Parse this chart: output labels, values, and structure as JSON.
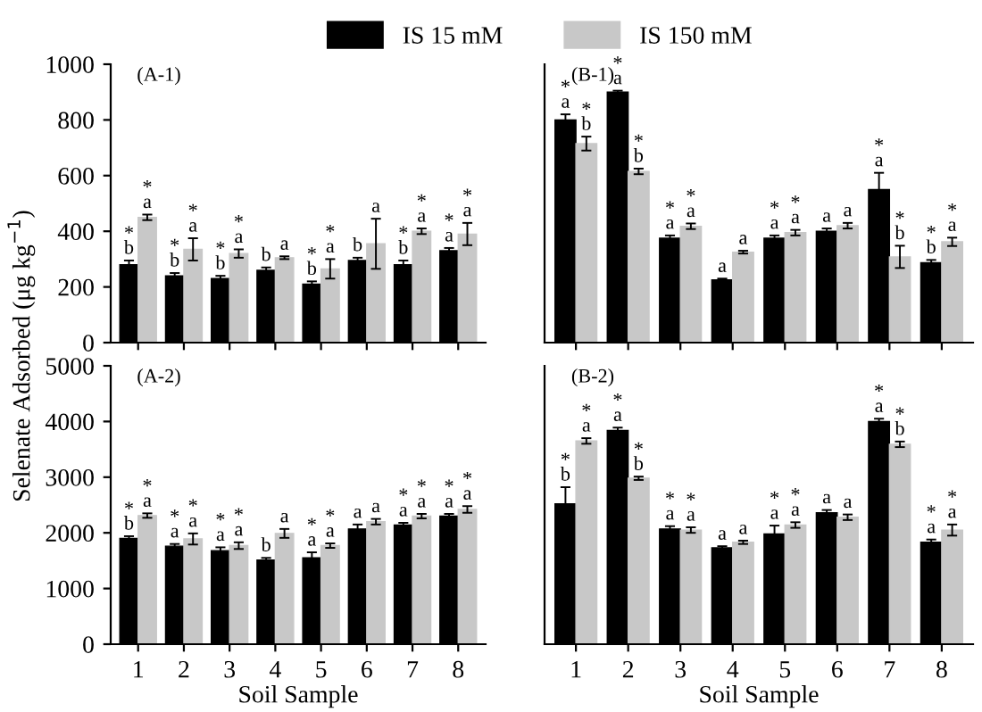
{
  "chart_data": [
    {
      "type": "bar",
      "title": "(A-1)",
      "ylabel": "Selenate Adsorbed (μg kg$^{−1}$)",
      "categories": [
        "1",
        "2",
        "3",
        "4",
        "5",
        "6",
        "7",
        "8"
      ],
      "ylim": [
        0,
        1000
      ],
      "yticks": [
        0,
        200,
        400,
        600,
        800,
        1000
      ],
      "tick_labels": "y",
      "legend": "top",
      "grid": false,
      "series": [
        {
          "name": "IS 15 mM",
          "color": "#000000",
          "values": [
            280,
            240,
            230,
            260,
            210,
            295,
            280,
            330
          ],
          "errors": [
            15,
            10,
            10,
            10,
            10,
            10,
            15,
            10
          ],
          "value_labels": [
            "*\nb",
            "*\nb",
            "*\nb",
            "b",
            "*\nb",
            "b",
            "*\nb",
            "*\na"
          ]
        },
        {
          "name": "IS 150 mM",
          "color": "#c8c8c8",
          "values": [
            450,
            335,
            320,
            305,
            265,
            355,
            400,
            390
          ],
          "errors": [
            10,
            40,
            15,
            5,
            35,
            90,
            10,
            40
          ],
          "value_labels": [
            "*\na",
            "*\na",
            "*\na",
            "a",
            "*\na",
            "a",
            "*\na",
            "*\na"
          ]
        }
      ]
    },
    {
      "type": "bar",
      "title": "(B-1)",
      "categories": [
        "1",
        "2",
        "3",
        "4",
        "5",
        "6",
        "7",
        "8"
      ],
      "ylim": [
        0,
        1000
      ],
      "yticks": [
        0,
        200,
        400,
        600,
        800,
        1000
      ],
      "tick_labels": false,
      "grid": false,
      "series": [
        {
          "color": "#000000",
          "values": [
            800,
            900,
            375,
            225,
            375,
            400,
            550,
            287
          ],
          "errors": [
            20,
            5,
            10,
            5,
            10,
            10,
            60,
            10
          ],
          "value_labels": [
            "*\na",
            "*\na",
            "*\na",
            "a",
            "*\na",
            "a",
            "*\na",
            "*\nb"
          ]
        },
        {
          "color": "#c8c8c8",
          "values": [
            715,
            615,
            418,
            325,
            395,
            420,
            308,
            362
          ],
          "errors": [
            25,
            10,
            10,
            5,
            10,
            10,
            40,
            15
          ],
          "value_labels": [
            "*\nb",
            "*\nb",
            "*\na",
            "a",
            "*\na",
            "a",
            "*\nb",
            "*\na"
          ]
        }
      ]
    },
    {
      "type": "bar",
      "title": "(A-2)",
      "xlabel": "Soil Sample",
      "categories": [
        "1",
        "2",
        "3",
        "4",
        "5",
        "6",
        "7",
        "8"
      ],
      "ylim": [
        0,
        5000
      ],
      "yticks": [
        0,
        1000,
        2000,
        3000,
        4000,
        5000
      ],
      "grid": false,
      "series": [
        {
          "color": "#000000",
          "values": [
            1900,
            1760,
            1680,
            1510,
            1550,
            2070,
            2140,
            2300
          ],
          "errors": [
            40,
            40,
            60,
            40,
            100,
            80,
            40,
            40
          ],
          "value_labels": [
            "*\nb",
            "*\na",
            "*\na",
            "b",
            "*\na",
            "a",
            "*\na",
            "*\na"
          ]
        },
        {
          "color": "#c8c8c8",
          "values": [
            2310,
            1890,
            1770,
            1990,
            1770,
            2200,
            2300,
            2420
          ],
          "errors": [
            40,
            100,
            60,
            80,
            40,
            50,
            40,
            60
          ],
          "value_labels": [
            "*\na",
            "*\na",
            "*\na",
            "a",
            "*\na",
            "a",
            "*\na",
            "*\na"
          ]
        }
      ]
    },
    {
      "type": "bar",
      "title": "(B-2)",
      "xlabel": "Soil Sample",
      "categories": [
        "1",
        "2",
        "3",
        "4",
        "5",
        "6",
        "7",
        "8"
      ],
      "ylim": [
        0,
        5000
      ],
      "yticks": [
        0,
        1000,
        2000,
        3000,
        4000,
        5000
      ],
      "tick_labels": "x",
      "grid": false,
      "series": [
        {
          "color": "#000000",
          "values": [
            2520,
            3840,
            2070,
            1730,
            1980,
            2360,
            4000,
            1830
          ],
          "errors": [
            300,
            50,
            50,
            30,
            150,
            50,
            50,
            50
          ],
          "value_labels": [
            "*\nb",
            "*\na",
            "*\na",
            "a",
            "*\na",
            "a",
            "*\na",
            "*\na"
          ]
        },
        {
          "color": "#c8c8c8",
          "values": [
            3650,
            2980,
            2050,
            1830,
            2140,
            2280,
            3590,
            2050
          ],
          "errors": [
            50,
            30,
            50,
            30,
            50,
            50,
            50,
            100
          ],
          "value_labels": [
            "*\na",
            "*\nb",
            "*\na",
            "a",
            "*\na",
            "a",
            "*\nb",
            "*\na"
          ]
        }
      ]
    }
  ]
}
